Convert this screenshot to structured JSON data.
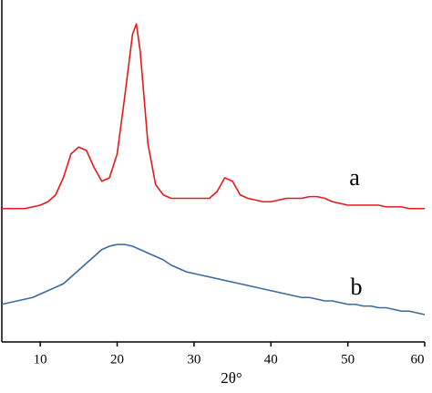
{
  "chart_data": {
    "type": "line",
    "x_label": "2θ°",
    "x": [
      5,
      6,
      7,
      8,
      9,
      10,
      11,
      12,
      13,
      14,
      15,
      16,
      17,
      18,
      19,
      20,
      21,
      22,
      22.5,
      23,
      24,
      25,
      26,
      27,
      28,
      29,
      30,
      31,
      32,
      33,
      34,
      35,
      36,
      37,
      38,
      39,
      40,
      41,
      42,
      43,
      44,
      45,
      46,
      47,
      48,
      49,
      50,
      51,
      52,
      53,
      54,
      55,
      56,
      57,
      58,
      59,
      60
    ],
    "series": [
      {
        "name": "a",
        "color": "#e8191c",
        "values": [
          39,
          39,
          39,
          39,
          39.5,
          40,
          41,
          43,
          48,
          55,
          57,
          56,
          51,
          47,
          48,
          55,
          72,
          90,
          93,
          85,
          58,
          46,
          43,
          42,
          42,
          42,
          42,
          42,
          42,
          44,
          48,
          47,
          43,
          42,
          41.5,
          41,
          41,
          41.5,
          42,
          42,
          42,
          42.5,
          42.5,
          42,
          41,
          40.5,
          40,
          40,
          40,
          40,
          40,
          39.5,
          39.5,
          39.5,
          39,
          39,
          39
        ]
      },
      {
        "name": "b",
        "color": "#3a6a9e",
        "values": [
          11,
          11.5,
          12,
          12.5,
          13,
          14,
          15,
          16,
          17,
          19,
          21,
          23,
          25,
          27,
          28,
          28.5,
          28.5,
          28,
          27.5,
          27,
          26,
          25,
          24,
          22.5,
          21.5,
          20.5,
          20,
          19.5,
          19,
          18.5,
          18,
          17.5,
          17,
          16.5,
          16,
          15.5,
          15,
          14.5,
          14,
          13.5,
          13,
          13,
          12.5,
          12,
          12,
          11.5,
          11,
          11,
          10.5,
          10.5,
          10,
          10,
          9.5,
          9,
          9,
          8.5,
          8
        ]
      }
    ],
    "xlim": [
      5,
      60
    ],
    "ylim": [
      0,
      100
    ],
    "xticks": [
      10,
      20,
      30,
      40,
      50,
      60
    ]
  }
}
